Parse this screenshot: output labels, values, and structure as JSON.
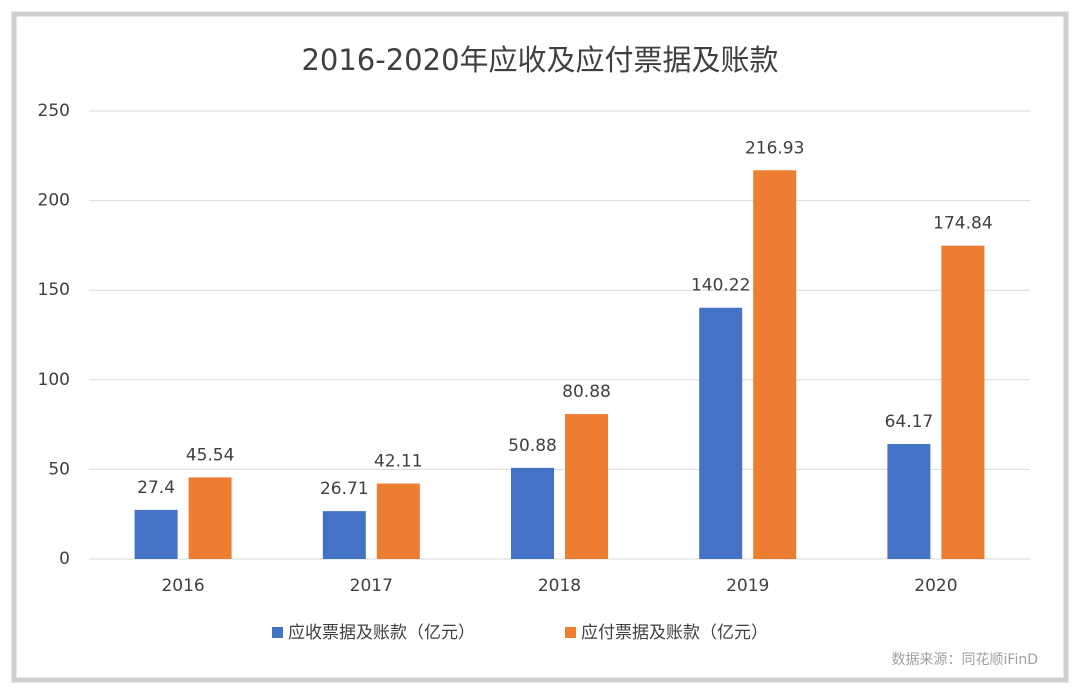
{
  "chart_data": {
    "type": "bar",
    "title": "2016-2020年应收及应付票据及账款",
    "categories": [
      "2016",
      "2017",
      "2018",
      "2019",
      "2020"
    ],
    "series": [
      {
        "name": "应收票据及账款（亿元）",
        "color": "#4472c4",
        "values": [
          27.4,
          26.71,
          50.88,
          140.22,
          64.17
        ]
      },
      {
        "name": "应付票据及账款（亿元）",
        "color": "#ed7d31",
        "values": [
          45.54,
          42.11,
          80.88,
          216.93,
          174.84
        ]
      }
    ],
    "ylim": [
      0,
      250
    ],
    "yticks": [
      0,
      50,
      100,
      150,
      200,
      250
    ],
    "grid": true,
    "source": "数据来源：同花顺iFinD"
  }
}
